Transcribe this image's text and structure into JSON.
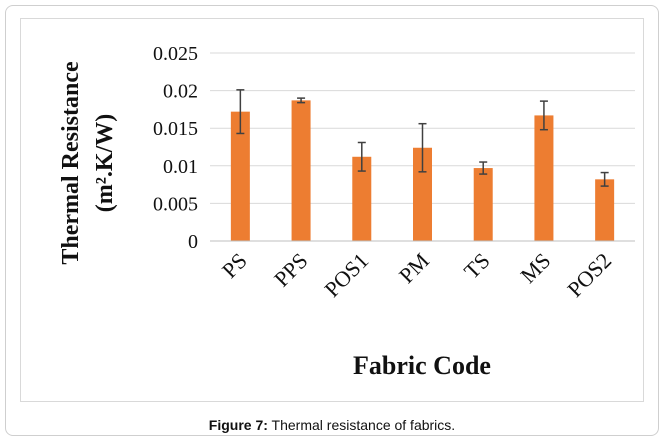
{
  "caption": {
    "label": "Figure 7:",
    "text": " Thermal resistance of fabrics."
  },
  "chart_data": {
    "type": "bar",
    "title": "",
    "xlabel": "Fabric Code",
    "ylabel": "Thermal Resistance (m².K/W)",
    "ylabel_lines": [
      "Thermal Resistance",
      "(m².K/W)"
    ],
    "categories": [
      "PS",
      "PPS",
      "POS1",
      "PM",
      "TS",
      "MS",
      "POS2"
    ],
    "series": [
      {
        "values": [
          0.0172,
          0.0187,
          0.0112,
          0.0124,
          0.0097,
          0.0167,
          0.0082
        ],
        "errors": [
          0.0029,
          0.0003,
          0.0019,
          0.0032,
          0.0008,
          0.0019,
          0.0009
        ]
      }
    ],
    "ylim": [
      0,
      0.025
    ],
    "yticks": [
      0,
      0.005,
      0.01,
      0.015,
      0.02,
      0.025
    ],
    "ytick_labels": [
      "0",
      "0.005",
      "0.01",
      "0.015",
      "0.02",
      "0.025"
    ],
    "grid": true,
    "legend": "none",
    "bar_color": "#ED7D31",
    "grid_color": "#d9d9d9",
    "error_bar_color": "#404040"
  }
}
